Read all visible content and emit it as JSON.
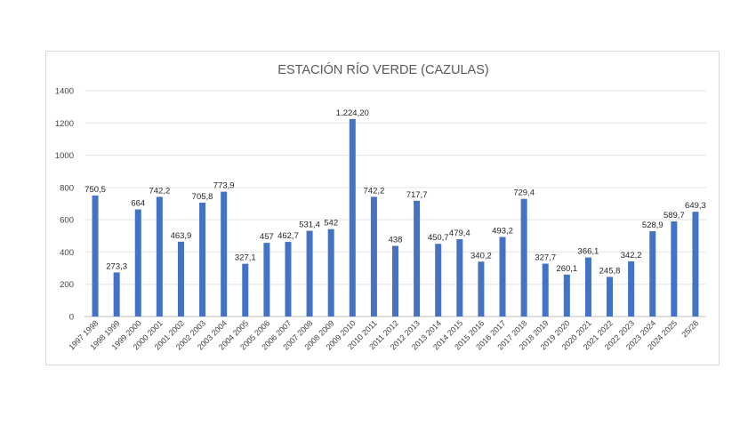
{
  "chart_data": {
    "type": "bar",
    "title": "ESTACIÓN RÍO VERDE (CAZULAS)",
    "xlabel": "",
    "ylabel": "",
    "ylim": [
      0,
      1400
    ],
    "yticks": [
      0,
      200,
      400,
      600,
      800,
      1000,
      1200,
      1400
    ],
    "grid": true,
    "legend": "none",
    "bar_color": "#4472c4",
    "categories": [
      "1997 1998",
      "1998 1999",
      "1999 2000",
      "2000 2001",
      "2001 2002",
      "2002 2003",
      "2003 2004",
      "2004 2005",
      "2005 2006",
      "2006 2007",
      "2007 2008",
      "2008 2009",
      "2009 2010",
      "2010 2011",
      "2011 2012",
      "2012 2013",
      "2013 2014",
      "2014 2015",
      "2015 2016",
      "2016 2017",
      "2017 2018",
      "2018 2019",
      "2019 2020",
      "2020 2021",
      "2021 2022",
      "2022 2023",
      "2023 2024",
      "2024 2025",
      "25/26"
    ],
    "values": [
      750.5,
      273.3,
      664,
      742.2,
      463.9,
      705.8,
      773.9,
      327.1,
      457,
      462.7,
      531.4,
      542,
      1224.2,
      742.2,
      438,
      717.7,
      450.7,
      479.4,
      340.2,
      493.2,
      729.4,
      327.7,
      260.1,
      366.1,
      245.8,
      342.2,
      528.9,
      589.7,
      649.3
    ],
    "data_labels": [
      "750,5",
      "273,3",
      "664",
      "742,2",
      "463,9",
      "705,8",
      "773,9",
      "327,1",
      "457",
      "462,7",
      "531,4",
      "542",
      "1.224,20",
      "742,2",
      "438",
      "717,7",
      "450,7",
      "479,4",
      "340,2",
      "493,2",
      "729,4",
      "327,7",
      "260,1",
      "366,1",
      "245,8",
      "342,2",
      "528,9",
      "589,7",
      "649,3"
    ]
  }
}
